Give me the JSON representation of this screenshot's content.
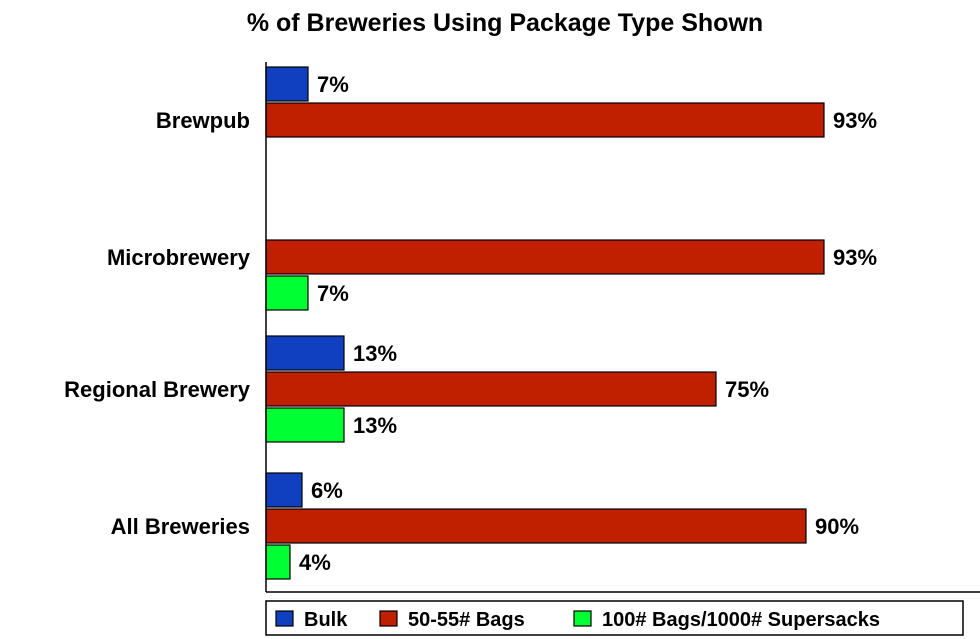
{
  "chart_data": {
    "type": "bar",
    "orientation": "horizontal",
    "title": "% of Breweries Using Package Type Shown",
    "categories": [
      "Brewpub",
      "Microbrewery",
      "Regional Brewery",
      "All Breweries"
    ],
    "series": [
      {
        "name": "Bulk",
        "color": "#1040c0",
        "values": [
          7,
          null,
          13,
          6
        ]
      },
      {
        "name": "50-55# Bags",
        "color": "#c01f00",
        "values": [
          93,
          93,
          75,
          90
        ]
      },
      {
        "name": "100# Bags/1000# Supersacks",
        "color": "#00ff33",
        "values": [
          null,
          7,
          13,
          4
        ]
      }
    ],
    "value_suffix": "%",
    "xlim": [
      0,
      100
    ],
    "grid": false,
    "legend_position": "bottom"
  }
}
